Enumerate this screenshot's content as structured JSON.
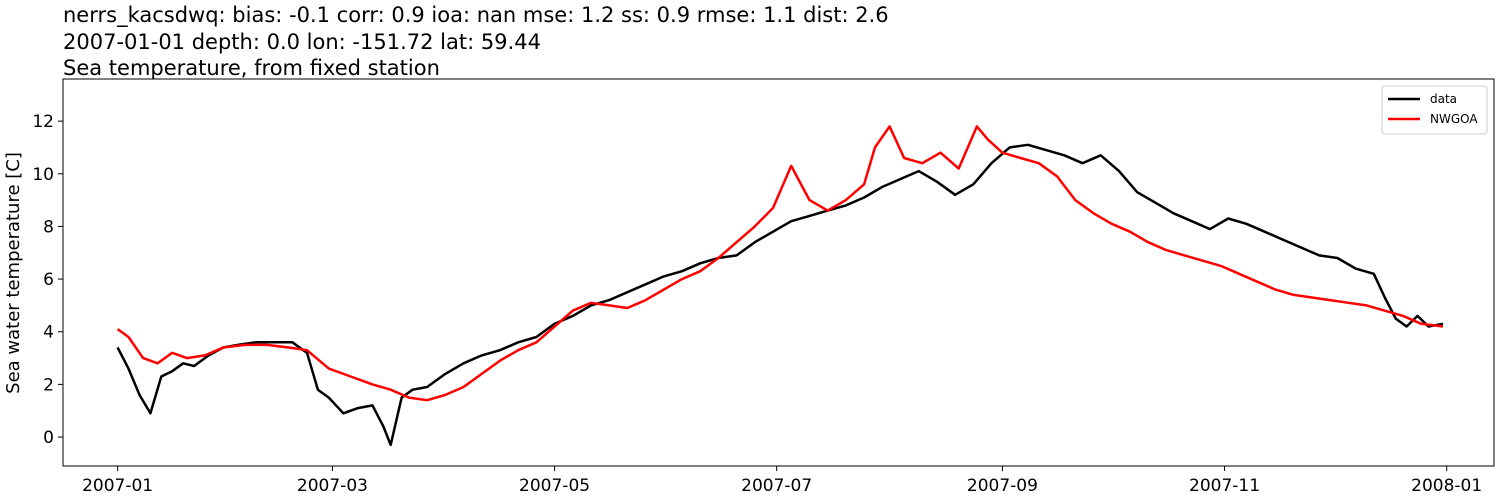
{
  "titles": {
    "line1": "nerrs_kacsdwq: bias: -0.1  corr: 0.9  ioa: nan  mse: 1.2  ss: 0.9  rmse: 1.1  dist: 2.6",
    "line2": "2007-01-01 depth: 0.0 lon: -151.72 lat: 59.44",
    "line3": "Sea temperature, from fixed station"
  },
  "chart_data": {
    "type": "line",
    "title": "Sea temperature, from fixed station",
    "xlabel": "",
    "ylabel": "Sea water temperature [C]",
    "x_axis_type": "date",
    "xlim": [
      "2006-12-17",
      "2008-01-14"
    ],
    "ylim": [
      -1.1,
      13.6
    ],
    "xticks": [
      "2007-01",
      "2007-03",
      "2007-05",
      "2007-07",
      "2007-09",
      "2007-11",
      "2008-01"
    ],
    "yticks": [
      0,
      2,
      4,
      6,
      8,
      10,
      12
    ],
    "grid": false,
    "legend_position": "top-right",
    "series": [
      {
        "name": "data",
        "color": "#000000",
        "x": [
          "2007-01-01",
          "2007-01-04",
          "2007-01-07",
          "2007-01-10",
          "2007-01-13",
          "2007-01-16",
          "2007-01-19",
          "2007-01-22",
          "2007-01-26",
          "2007-01-30",
          "2007-02-03",
          "2007-02-08",
          "2007-02-13",
          "2007-02-18",
          "2007-02-22",
          "2007-02-25",
          "2007-02-28",
          "2007-03-04",
          "2007-03-08",
          "2007-03-12",
          "2007-03-15",
          "2007-03-17",
          "2007-03-20",
          "2007-03-23",
          "2007-03-27",
          "2007-04-01",
          "2007-04-06",
          "2007-04-11",
          "2007-04-16",
          "2007-04-21",
          "2007-04-26",
          "2007-05-01",
          "2007-05-06",
          "2007-05-11",
          "2007-05-16",
          "2007-05-21",
          "2007-05-26",
          "2007-05-31",
          "2007-06-05",
          "2007-06-10",
          "2007-06-15",
          "2007-06-20",
          "2007-06-25",
          "2007-06-30",
          "2007-07-05",
          "2007-07-10",
          "2007-07-15",
          "2007-07-20",
          "2007-07-25",
          "2007-07-30",
          "2007-08-04",
          "2007-08-09",
          "2007-08-14",
          "2007-08-19",
          "2007-08-24",
          "2007-08-29",
          "2007-09-03",
          "2007-09-08",
          "2007-09-13",
          "2007-09-18",
          "2007-09-23",
          "2007-09-28",
          "2007-10-03",
          "2007-10-08",
          "2007-10-13",
          "2007-10-18",
          "2007-10-23",
          "2007-10-28",
          "2007-11-02",
          "2007-11-07",
          "2007-11-12",
          "2007-11-17",
          "2007-11-22",
          "2007-11-27",
          "2007-12-02",
          "2007-12-07",
          "2007-12-12",
          "2007-12-15",
          "2007-12-18",
          "2007-12-21",
          "2007-12-24",
          "2007-12-27",
          "2007-12-31"
        ],
        "y": [
          3.4,
          2.6,
          1.6,
          0.9,
          2.3,
          2.5,
          2.8,
          2.7,
          3.1,
          3.4,
          3.5,
          3.6,
          3.6,
          3.6,
          3.2,
          1.8,
          1.5,
          0.9,
          1.1,
          1.2,
          0.4,
          -0.3,
          1.5,
          1.8,
          1.9,
          2.4,
          2.8,
          3.1,
          3.3,
          3.6,
          3.8,
          4.3,
          4.6,
          5.0,
          5.2,
          5.5,
          5.8,
          6.1,
          6.3,
          6.6,
          6.8,
          6.9,
          7.4,
          7.8,
          8.2,
          8.4,
          8.6,
          8.8,
          9.1,
          9.5,
          9.8,
          10.1,
          9.7,
          9.2,
          9.6,
          10.4,
          11.0,
          11.1,
          10.9,
          10.7,
          10.4,
          10.7,
          10.1,
          9.3,
          8.9,
          8.5,
          8.2,
          7.9,
          8.3,
          8.1,
          7.8,
          7.5,
          7.2,
          6.9,
          6.8,
          6.4,
          6.2,
          5.3,
          4.5,
          4.2,
          4.6,
          4.2,
          4.3
        ]
      },
      {
        "name": "NWGOA",
        "color": "#ff0000",
        "x": [
          "2007-01-01",
          "2007-01-04",
          "2007-01-08",
          "2007-01-12",
          "2007-01-16",
          "2007-01-20",
          "2007-01-25",
          "2007-01-30",
          "2007-02-05",
          "2007-02-11",
          "2007-02-17",
          "2007-02-22",
          "2007-02-28",
          "2007-03-06",
          "2007-03-12",
          "2007-03-17",
          "2007-03-22",
          "2007-03-27",
          "2007-04-01",
          "2007-04-06",
          "2007-04-11",
          "2007-04-16",
          "2007-04-21",
          "2007-04-26",
          "2007-05-01",
          "2007-05-06",
          "2007-05-11",
          "2007-05-16",
          "2007-05-21",
          "2007-05-26",
          "2007-05-31",
          "2007-06-05",
          "2007-06-10",
          "2007-06-15",
          "2007-06-20",
          "2007-06-25",
          "2007-06-30",
          "2007-07-05",
          "2007-07-10",
          "2007-07-15",
          "2007-07-20",
          "2007-07-25",
          "2007-07-28",
          "2007-08-01",
          "2007-08-05",
          "2007-08-10",
          "2007-08-15",
          "2007-08-20",
          "2007-08-25",
          "2007-08-28",
          "2007-09-01",
          "2007-09-06",
          "2007-09-11",
          "2007-09-16",
          "2007-09-21",
          "2007-09-26",
          "2007-10-01",
          "2007-10-06",
          "2007-10-11",
          "2007-10-16",
          "2007-10-21",
          "2007-10-26",
          "2007-10-31",
          "2007-11-05",
          "2007-11-10",
          "2007-11-15",
          "2007-11-20",
          "2007-11-25",
          "2007-11-30",
          "2007-12-05",
          "2007-12-10",
          "2007-12-15",
          "2007-12-20",
          "2007-12-25",
          "2007-12-31"
        ],
        "y": [
          4.1,
          3.8,
          3.0,
          2.8,
          3.2,
          3.0,
          3.1,
          3.4,
          3.5,
          3.5,
          3.4,
          3.3,
          2.6,
          2.3,
          2.0,
          1.8,
          1.5,
          1.4,
          1.6,
          1.9,
          2.4,
          2.9,
          3.3,
          3.6,
          4.2,
          4.8,
          5.1,
          5.0,
          4.9,
          5.2,
          5.6,
          6.0,
          6.3,
          6.8,
          7.4,
          8.0,
          8.7,
          10.3,
          9.0,
          8.6,
          9.0,
          9.6,
          11.0,
          11.8,
          10.6,
          10.4,
          10.8,
          10.2,
          11.8,
          11.3,
          10.8,
          10.6,
          10.4,
          9.9,
          9.0,
          8.5,
          8.1,
          7.8,
          7.4,
          7.1,
          6.9,
          6.7,
          6.5,
          6.2,
          5.9,
          5.6,
          5.4,
          5.3,
          5.2,
          5.1,
          5.0,
          4.8,
          4.6,
          4.3,
          4.2
        ]
      }
    ]
  }
}
